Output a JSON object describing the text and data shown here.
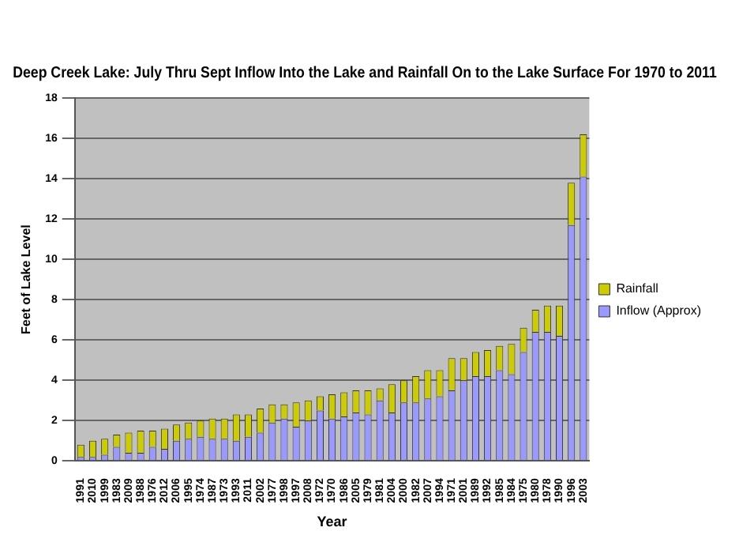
{
  "chart_data": {
    "type": "bar",
    "title": "Deep Creek Lake: July Thru Sept Inflow Into the Lake and Rainfall On to the Lake Surface For 1970 to 2011",
    "xlabel": "Year",
    "ylabel": "Feet of Lake Level",
    "categories": [
      "1991",
      "2010",
      "1999",
      "1983",
      "2009",
      "1988",
      "1976",
      "2012",
      "2006",
      "1995",
      "1974",
      "1987",
      "1973",
      "1993",
      "2011",
      "2002",
      "1977",
      "1998",
      "1997",
      "2008",
      "1972",
      "1970",
      "1986",
      "2005",
      "1979",
      "1981",
      "2004",
      "2000",
      "1982",
      "2007",
      "1994",
      "1971",
      "2001",
      "1989",
      "1992",
      "1985",
      "1984",
      "1975",
      "1980",
      "1978",
      "1990",
      "1996",
      "2003"
    ],
    "stacked": true,
    "series": [
      {
        "name": "Inflow (Approx)",
        "color": "#9999ff",
        "values": [
          0.2,
          0.2,
          0.3,
          0.7,
          0.4,
          0.4,
          0.7,
          0.6,
          1.0,
          1.1,
          1.2,
          1.1,
          1.1,
          1.0,
          1.2,
          1.4,
          1.9,
          2.1,
          1.7,
          2.0,
          2.5,
          2.1,
          2.2,
          2.4,
          2.3,
          3.0,
          2.4,
          2.9,
          2.9,
          3.1,
          3.2,
          3.5,
          4.0,
          4.2,
          4.2,
          4.5,
          4.3,
          5.4,
          6.4,
          6.4,
          6.2,
          11.7,
          14.1
        ]
      },
      {
        "name": "Rainfall",
        "color": "#cccc00",
        "values": [
          0.6,
          0.8,
          0.8,
          0.6,
          1.0,
          1.1,
          0.8,
          1.0,
          0.8,
          0.8,
          0.8,
          1.0,
          1.0,
          1.3,
          1.1,
          1.2,
          0.9,
          0.7,
          1.2,
          1.0,
          0.7,
          1.2,
          1.2,
          1.1,
          1.2,
          0.6,
          1.4,
          1.1,
          1.3,
          1.4,
          1.3,
          1.6,
          1.1,
          1.2,
          1.3,
          1.2,
          1.5,
          1.2,
          1.1,
          1.3,
          1.5,
          2.1,
          2.1
        ]
      }
    ],
    "ylim": [
      0,
      18
    ],
    "yticks": [
      0,
      2,
      4,
      6,
      8,
      10,
      12,
      14,
      16,
      18
    ],
    "grid": "y",
    "legend": "right"
  }
}
